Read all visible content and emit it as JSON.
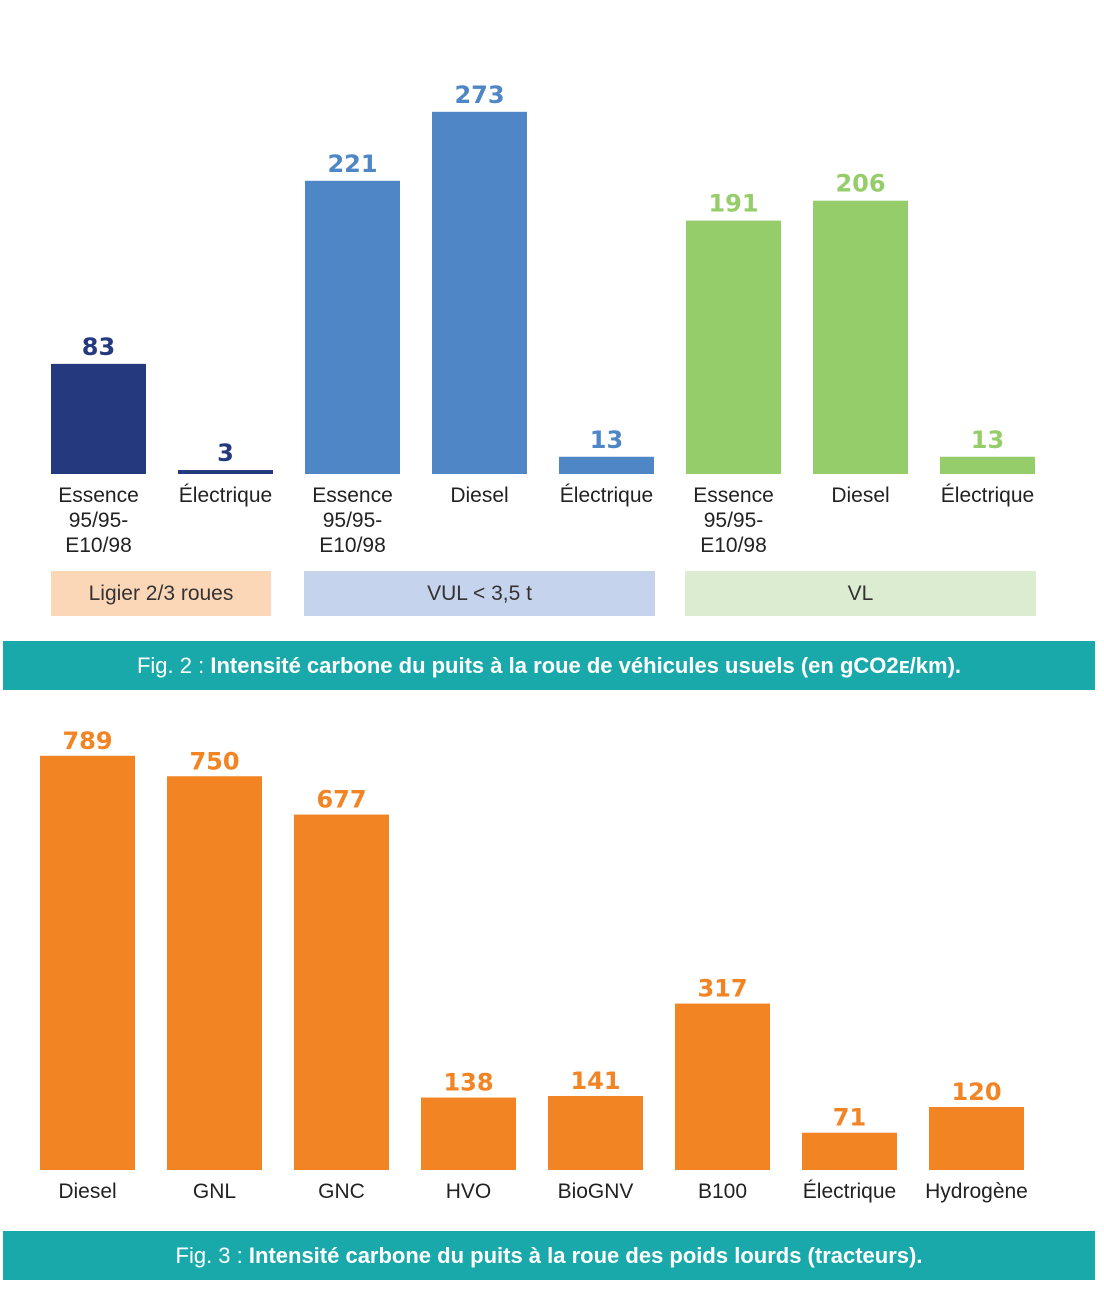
{
  "figures": [
    {
      "caption_prefix": "Fig. 2 : ",
      "caption_title": "Intensité carbone du puits à la roue de véhicules usuels (en gCO2ᴇ/km)."
    },
    {
      "caption_prefix": "Fig. 3 : ",
      "caption_title": "Intensité carbone du puits à la roue des poids lourds (tracteurs)."
    }
  ],
  "chart_data": [
    {
      "type": "bar",
      "title": "",
      "ylim": [
        0,
        300
      ],
      "grid": false,
      "groups": [
        {
          "label": "Ligier 2/3 roues",
          "color": "#253a7e",
          "band_color": "#fbd7b8",
          "categories": [
            "Essence 95/95-E10/98",
            "Électrique"
          ],
          "values": [
            83,
            3
          ]
        },
        {
          "label": "VUL < 3,5 t",
          "color": "#4f86c6",
          "band_color": "#c6d3ec",
          "categories": [
            "Essence 95/95-E10/98",
            "Diesel",
            "Électrique"
          ],
          "values": [
            221,
            273,
            13
          ]
        },
        {
          "label": "VL",
          "color": "#96cd6b",
          "band_color": "#dcecd1",
          "categories": [
            "Essence 95/95-E10/98",
            "Diesel",
            "Électrique"
          ],
          "values": [
            191,
            206,
            13
          ]
        }
      ]
    },
    {
      "type": "bar",
      "title": "",
      "ylim": [
        0,
        800
      ],
      "grid": false,
      "color": "#f28424",
      "categories": [
        "Diesel",
        "GNL",
        "GNC",
        "HVO",
        "BioGNV",
        "B100",
        "Électrique",
        "Hydrogène"
      ],
      "values": [
        789,
        750,
        677,
        138,
        141,
        317,
        71,
        120
      ]
    }
  ]
}
